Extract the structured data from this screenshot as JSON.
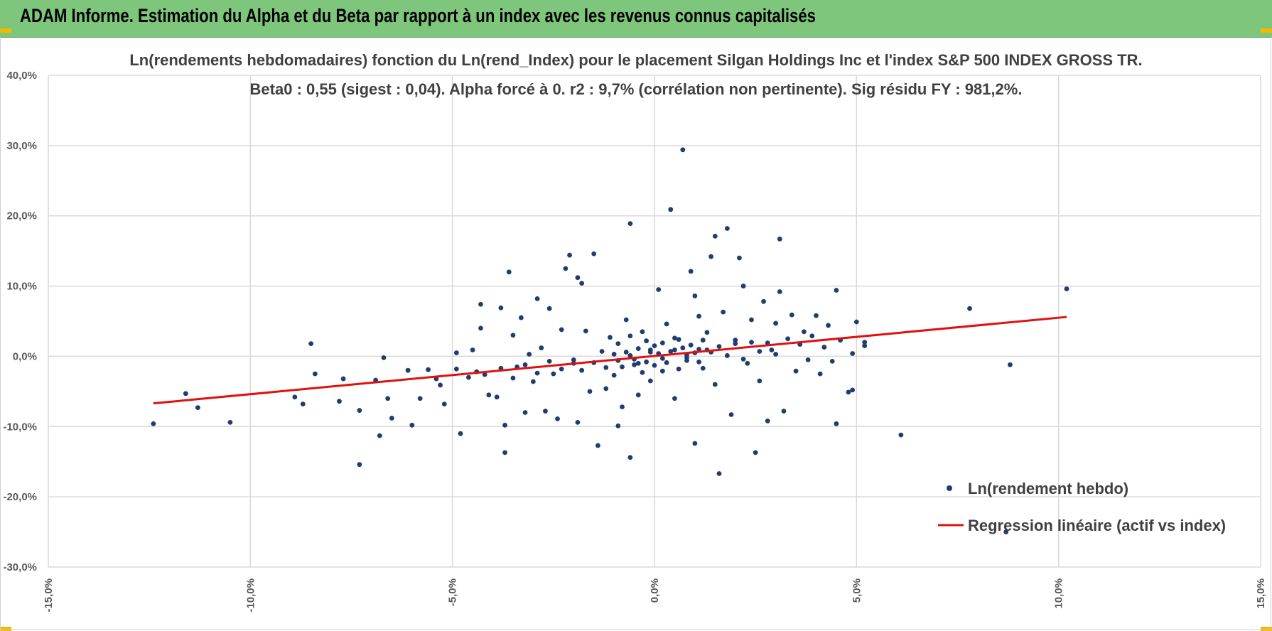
{
  "banner": {
    "title": "ADAM Informe. Estimation du Alpha et du Beta par rapport à un index avec les revenus connus capitalisés"
  },
  "colors": {
    "banner_bg": "#7dc67b",
    "points": "#1f3d6e",
    "regression": "#e01010",
    "grid": "#d9d9d9"
  },
  "chart_data": {
    "type": "scatter",
    "title_line1": "Ln(rendements hebdomadaires) fonction du Ln(rend_Index) pour le placement Silgan Holdings Inc et l'index S&P 500 INDEX GROSS TR.",
    "title_line2": "Beta0 : 0,55  (sigest : 0,04). Alpha forcé à 0. r2 : 9,7% (corrélation non pertinente). Sig résidu FY : 981,2%.",
    "xlim": [
      -15,
      15
    ],
    "ylim": [
      -30,
      40
    ],
    "x_ticks": [
      -15,
      -10,
      -5,
      0,
      5,
      10,
      15
    ],
    "y_ticks": [
      -30,
      -20,
      -10,
      0,
      10,
      20,
      30,
      40
    ],
    "x_tick_labels": [
      "-15,0%",
      "-10,0%",
      "-5,0%",
      "0,0%",
      "5,0%",
      "10,0%",
      "15,0%"
    ],
    "y_tick_labels": [
      "-30,0%",
      "-20,0%",
      "-10,0%",
      "0,0%",
      "10,0%",
      "20,0%",
      "30,0%",
      "40,0%"
    ],
    "grid": true,
    "legend_position": "bottom-right",
    "series": [
      {
        "name": "Ln(rendement hebdo)",
        "kind": "scatter",
        "points": [
          [
            -12.4,
            -9.6
          ],
          [
            -11.6,
            -5.3
          ],
          [
            -11.3,
            -7.3
          ],
          [
            -10.5,
            -9.4
          ],
          [
            -8.5,
            1.8
          ],
          [
            -8.4,
            -2.5
          ],
          [
            -8.9,
            -5.8
          ],
          [
            -8.7,
            -6.8
          ],
          [
            -7.8,
            -6.4
          ],
          [
            -7.7,
            -3.2
          ],
          [
            -7.3,
            -15.4
          ],
          [
            -7.3,
            -7.7
          ],
          [
            -6.9,
            -3.4
          ],
          [
            -6.8,
            -11.3
          ],
          [
            -6.7,
            -0.2
          ],
          [
            -6.6,
            -6.0
          ],
          [
            -6.5,
            -8.8
          ],
          [
            -6.1,
            -2.0
          ],
          [
            -6.0,
            -9.8
          ],
          [
            -5.8,
            -6.0
          ],
          [
            -5.6,
            -1.9
          ],
          [
            -5.4,
            -3.2
          ],
          [
            -5.3,
            -4.1
          ],
          [
            -5.2,
            -6.8
          ],
          [
            -4.9,
            -1.8
          ],
          [
            -4.9,
            0.5
          ],
          [
            -4.8,
            -11.0
          ],
          [
            -4.6,
            -3.0
          ],
          [
            -4.5,
            0.9
          ],
          [
            -4.4,
            -2.2
          ],
          [
            -4.3,
            4.0
          ],
          [
            -4.3,
            7.4
          ],
          [
            -4.1,
            -5.5
          ],
          [
            -3.9,
            -5.8
          ],
          [
            -3.8,
            6.9
          ],
          [
            -3.7,
            -9.8
          ],
          [
            -3.7,
            -13.7
          ],
          [
            -3.6,
            12.0
          ],
          [
            -3.5,
            3.0
          ],
          [
            -3.4,
            -1.5
          ],
          [
            -3.3,
            5.5
          ],
          [
            -3.2,
            -8.0
          ],
          [
            -3.1,
            0.3
          ],
          [
            -3.0,
            -3.6
          ],
          [
            -2.9,
            8.2
          ],
          [
            -2.8,
            1.2
          ],
          [
            -2.7,
            -7.8
          ],
          [
            -2.6,
            6.8
          ],
          [
            -2.5,
            -2.5
          ],
          [
            -2.4,
            -8.9
          ],
          [
            -2.3,
            3.8
          ],
          [
            -2.2,
            12.5
          ],
          [
            -2.1,
            14.4
          ],
          [
            -2.0,
            -1.0
          ],
          [
            -1.9,
            -9.4
          ],
          [
            -1.9,
            11.2
          ],
          [
            -1.8,
            10.4
          ],
          [
            -1.7,
            3.6
          ],
          [
            -1.6,
            -5.0
          ],
          [
            -1.5,
            14.6
          ],
          [
            -1.4,
            -12.7
          ],
          [
            -1.3,
            0.7
          ],
          [
            -1.2,
            -4.6
          ],
          [
            -1.1,
            2.7
          ],
          [
            -1.0,
            -2.7
          ],
          [
            -0.9,
            -9.9
          ],
          [
            -0.8,
            -7.2
          ],
          [
            -0.7,
            5.2
          ],
          [
            -0.6,
            -14.4
          ],
          [
            -0.6,
            18.9
          ],
          [
            -0.5,
            -1.2
          ],
          [
            -0.4,
            -5.5
          ],
          [
            -0.3,
            3.5
          ],
          [
            -0.2,
            -0.8
          ],
          [
            -0.1,
            -3.5
          ],
          [
            0.0,
            1.5
          ],
          [
            0.1,
            9.5
          ],
          [
            0.2,
            -2.1
          ],
          [
            0.3,
            4.6
          ],
          [
            0.4,
            20.9
          ],
          [
            0.5,
            -6.0
          ],
          [
            0.6,
            2.4
          ],
          [
            0.7,
            29.4
          ],
          [
            0.8,
            -0.6
          ],
          [
            0.9,
            12.1
          ],
          [
            1.0,
            8.6
          ],
          [
            1.0,
            -12.4
          ],
          [
            1.1,
            5.7
          ],
          [
            1.2,
            -1.7
          ],
          [
            1.3,
            3.4
          ],
          [
            1.4,
            14.2
          ],
          [
            1.5,
            17.1
          ],
          [
            1.5,
            -4.0
          ],
          [
            1.6,
            -16.7
          ],
          [
            1.7,
            6.3
          ],
          [
            1.8,
            18.2
          ],
          [
            1.9,
            -8.3
          ],
          [
            2.0,
            2.3
          ],
          [
            2.1,
            14.0
          ],
          [
            2.2,
            10.0
          ],
          [
            2.3,
            -1.0
          ],
          [
            2.4,
            5.2
          ],
          [
            2.5,
            -13.7
          ],
          [
            2.6,
            -3.5
          ],
          [
            2.7,
            7.8
          ],
          [
            2.8,
            -9.2
          ],
          [
            2.9,
            0.9
          ],
          [
            3.0,
            4.7
          ],
          [
            3.1,
            9.2
          ],
          [
            3.1,
            16.7
          ],
          [
            3.2,
            -7.8
          ],
          [
            3.3,
            2.5
          ],
          [
            3.4,
            5.9
          ],
          [
            3.5,
            -2.1
          ],
          [
            3.6,
            1.7
          ],
          [
            3.7,
            3.5
          ],
          [
            3.8,
            -0.5
          ],
          [
            3.9,
            2.9
          ],
          [
            4.0,
            5.8
          ],
          [
            4.1,
            -2.5
          ],
          [
            4.2,
            1.3
          ],
          [
            4.3,
            4.4
          ],
          [
            4.4,
            -0.7
          ],
          [
            4.5,
            9.4
          ],
          [
            4.5,
            -9.6
          ],
          [
            4.6,
            2.3
          ],
          [
            4.8,
            -5.1
          ],
          [
            4.9,
            0.4
          ],
          [
            4.9,
            -4.8
          ],
          [
            5.0,
            4.9
          ],
          [
            5.2,
            1.5
          ],
          [
            5.2,
            2.0
          ],
          [
            6.1,
            -11.2
          ],
          [
            7.8,
            6.8
          ],
          [
            8.7,
            -25.0
          ],
          [
            8.8,
            -1.2
          ],
          [
            10.2,
            9.6
          ],
          [
            -1.0,
            0.3
          ],
          [
            -0.9,
            1.8
          ],
          [
            -0.8,
            -1.5
          ],
          [
            -0.7,
            0.6
          ],
          [
            -0.6,
            2.9
          ],
          [
            -0.5,
            -0.4
          ],
          [
            -0.4,
            1.1
          ],
          [
            -0.3,
            -2.3
          ],
          [
            -0.2,
            2.2
          ],
          [
            -0.1,
            0.9
          ],
          [
            0.0,
            -1.3
          ],
          [
            0.1,
            0.4
          ],
          [
            0.2,
            1.9
          ],
          [
            0.3,
            -0.9
          ],
          [
            0.4,
            0.7
          ],
          [
            0.5,
            2.6
          ],
          [
            0.6,
            -1.8
          ],
          [
            0.7,
            1.2
          ],
          [
            0.8,
            -0.2
          ],
          [
            0.9,
            1.6
          ],
          [
            1.0,
            0.5
          ],
          [
            1.1,
            -0.8
          ],
          [
            1.2,
            2.3
          ],
          [
            1.3,
            0.9
          ],
          [
            -0.9,
            -0.6
          ],
          [
            -0.6,
            0.1
          ],
          [
            -0.4,
            -1.0
          ],
          [
            -0.1,
            0.6
          ],
          [
            0.2,
            -0.3
          ],
          [
            0.5,
            0.9
          ],
          [
            0.8,
            0.2
          ],
          [
            1.1,
            1.0
          ],
          [
            1.4,
            0.6
          ],
          [
            1.6,
            1.4
          ],
          [
            1.8,
            0.1
          ],
          [
            2.0,
            1.8
          ],
          [
            2.2,
            -0.4
          ],
          [
            2.4,
            2.0
          ],
          [
            2.6,
            0.7
          ],
          [
            2.8,
            1.9
          ],
          [
            3.0,
            0.3
          ],
          [
            -1.2,
            -1.6
          ],
          [
            -1.5,
            -0.9
          ],
          [
            -1.8,
            -2.0
          ],
          [
            -2.0,
            -0.5
          ],
          [
            -2.3,
            -1.8
          ],
          [
            -2.6,
            -0.7
          ],
          [
            -2.9,
            -2.4
          ],
          [
            -3.2,
            -1.2
          ],
          [
            -3.5,
            -3.1
          ],
          [
            -3.8,
            -1.7
          ],
          [
            -4.2,
            -2.6
          ]
        ]
      },
      {
        "name": "Regression linéaire (actif vs index)",
        "kind": "line",
        "points": [
          [
            -12.4,
            -6.7
          ],
          [
            10.2,
            5.6
          ]
        ]
      }
    ]
  }
}
